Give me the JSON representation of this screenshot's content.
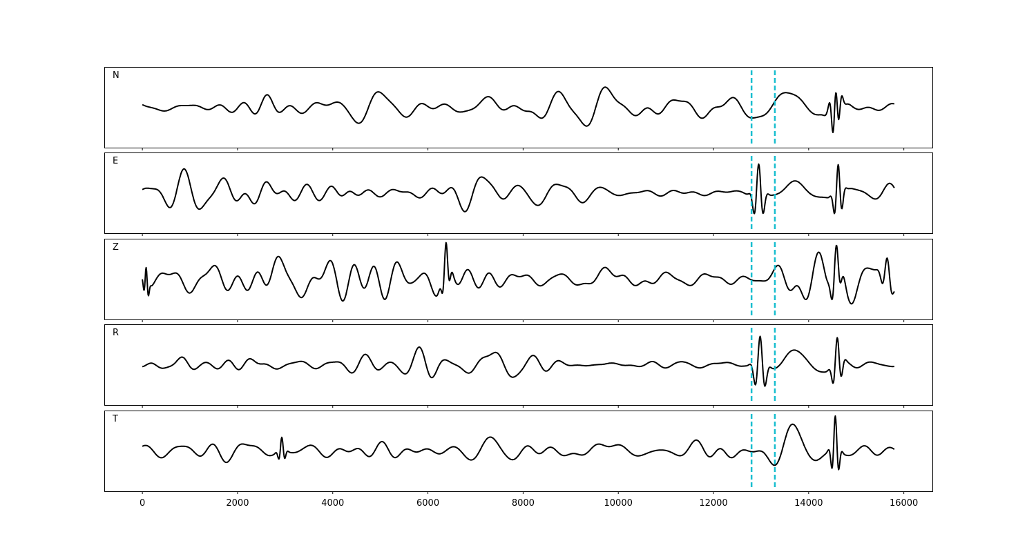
{
  "chart_data": {
    "type": "line",
    "figure_kind": "seismogram-panels",
    "shared_x": true,
    "xlim": [
      -800,
      16600
    ],
    "xticks": [
      0,
      2000,
      4000,
      6000,
      8000,
      10000,
      12000,
      14000,
      16000
    ],
    "xtick_labels": [
      "0",
      "2000",
      "4000",
      "6000",
      "8000",
      "10000",
      "12000",
      "14000",
      "16000"
    ],
    "ylim": [
      -1.15,
      1.15
    ],
    "y_ticks_shown": false,
    "grid": false,
    "trace_color": "#000000",
    "marker_color": "#17becf",
    "marker_style": "dashed",
    "markers_x": [
      12800,
      13290
    ],
    "x_range": [
      0,
      15800
    ],
    "n_samples": 1581,
    "panels": [
      {
        "label": "N",
        "seed": 11,
        "wave_count": 14,
        "base_amp": 0.27,
        "bursts": [
          {
            "x": 14570,
            "amp": 1.0,
            "width": 90
          },
          {
            "x": 14560,
            "amp": -0.55,
            "width": 140
          },
          {
            "x": 7200,
            "amp": 0.3,
            "width": 600
          },
          {
            "x": 9850,
            "amp": 0.3,
            "width": 700
          },
          {
            "x": 13600,
            "amp": 0.35,
            "width": 900
          },
          {
            "x": 5000,
            "amp": 0.2,
            "width": 600
          }
        ]
      },
      {
        "label": "E",
        "seed": 23,
        "wave_count": 14,
        "base_amp": 0.27,
        "bursts": [
          {
            "x": 12950,
            "amp": 0.95,
            "width": 120
          },
          {
            "x": 14620,
            "amp": 0.9,
            "width": 100
          },
          {
            "x": 13700,
            "amp": 0.35,
            "width": 700
          },
          {
            "x": 7400,
            "amp": 0.25,
            "width": 800
          },
          {
            "x": 750,
            "amp": 0.22,
            "width": 400
          }
        ]
      },
      {
        "label": "Z",
        "seed": 37,
        "wave_count": 16,
        "base_amp": 0.42,
        "bursts": [
          {
            "x": 6380,
            "amp": 0.75,
            "width": 90
          },
          {
            "x": 14580,
            "amp": 0.8,
            "width": 110
          },
          {
            "x": 15650,
            "amp": 0.55,
            "width": 130
          },
          {
            "x": 2700,
            "amp": 0.35,
            "width": 500
          },
          {
            "x": 9800,
            "amp": 0.35,
            "width": 600
          },
          {
            "x": 80,
            "amp": 0.5,
            "width": 60
          }
        ]
      },
      {
        "label": "R",
        "seed": 51,
        "wave_count": 14,
        "base_amp": 0.2,
        "bursts": [
          {
            "x": 12980,
            "amp": 0.95,
            "width": 130
          },
          {
            "x": 14600,
            "amp": 0.8,
            "width": 110
          },
          {
            "x": 13700,
            "amp": 0.35,
            "width": 800
          },
          {
            "x": 7300,
            "amp": 0.2,
            "width": 600
          },
          {
            "x": 850,
            "amp": 0.18,
            "width": 300
          }
        ]
      },
      {
        "label": "T",
        "seed": 67,
        "wave_count": 15,
        "base_amp": 0.27,
        "bursts": [
          {
            "x": 14560,
            "amp": 1.0,
            "width": 90
          },
          {
            "x": 7300,
            "amp": 0.4,
            "width": 500
          },
          {
            "x": 9800,
            "amp": 0.35,
            "width": 700
          },
          {
            "x": 13700,
            "amp": 0.45,
            "width": 800
          },
          {
            "x": 2930,
            "amp": 0.4,
            "width": 80
          }
        ]
      }
    ]
  }
}
